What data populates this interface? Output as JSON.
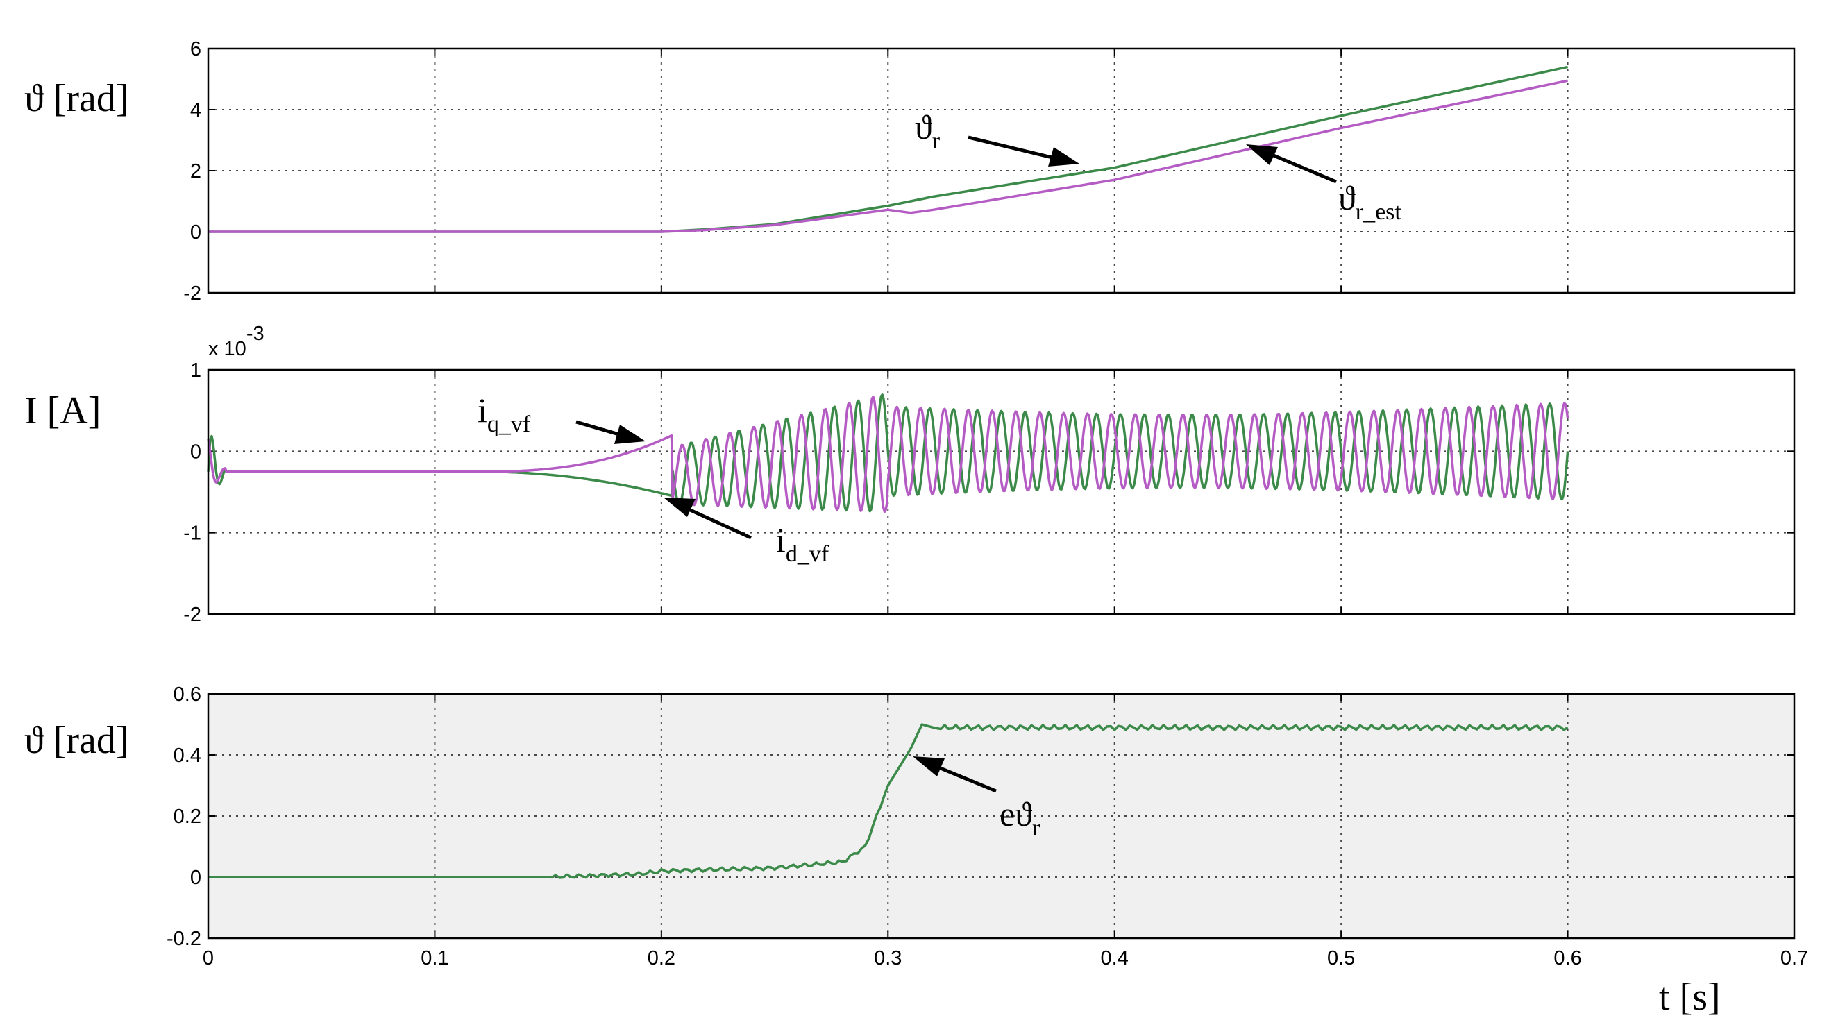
{
  "chart_data": [
    {
      "type": "line",
      "ylabel": "ϑ [rad]",
      "xlim": [
        0,
        0.7
      ],
      "ylim": [
        -2,
        6
      ],
      "yticks": [
        "6",
        "4",
        "2",
        "0",
        "-2"
      ],
      "grid": true,
      "background": "#ffffff",
      "series": [
        {
          "name": "ϑr",
          "color": "#3c8a4a",
          "x": [
            0,
            0.2,
            0.22,
            0.25,
            0.3,
            0.32,
            0.4,
            0.5,
            0.6
          ],
          "y": [
            0,
            0,
            0.08,
            0.25,
            0.85,
            1.15,
            2.1,
            3.8,
            5.4
          ]
        },
        {
          "name": "ϑr_est",
          "color": "#b45cc4",
          "x": [
            0,
            0.2,
            0.22,
            0.25,
            0.3,
            0.31,
            0.32,
            0.4,
            0.5,
            0.6
          ],
          "y": [
            0,
            0,
            0.06,
            0.22,
            0.72,
            0.62,
            0.72,
            1.7,
            3.4,
            4.95
          ]
        }
      ],
      "annotations": [
        {
          "base": "ϑ",
          "sub": "r"
        },
        {
          "base": "ϑ",
          "sub": "r_est"
        }
      ]
    },
    {
      "type": "line",
      "ylabel": "I [A]",
      "exponent": "x 10",
      "exponent_power": "-3",
      "xlim": [
        0,
        0.7
      ],
      "ylim": [
        -2,
        1
      ],
      "yticks": [
        "1",
        "0",
        "-1",
        "-2"
      ],
      "grid": true,
      "background": "#ffffff",
      "series": [
        {
          "name": "id_vf",
          "color": "#3c8a4a"
        },
        {
          "name": "iq_vf",
          "color": "#b45cc4"
        }
      ],
      "annotations": [
        {
          "base": "i",
          "sub": "q_vf"
        },
        {
          "base": "i",
          "sub": "d_vf"
        }
      ]
    },
    {
      "type": "line",
      "ylabel": "ϑ [rad]",
      "xlabel": "t [s]",
      "xlim": [
        0,
        0.7
      ],
      "ylim": [
        -0.2,
        0.6
      ],
      "yticks": [
        "0.6",
        "0.4",
        "0.2",
        "0",
        "-0.2"
      ],
      "xticks": [
        "0",
        "0.1",
        "0.2",
        "0.3",
        "0.4",
        "0.5",
        "0.6",
        "0.7"
      ],
      "grid": true,
      "background": "#f0f0f0",
      "series": [
        {
          "name": "eϑr",
          "color": "#3c8a4a",
          "x": [
            0,
            0.15,
            0.19,
            0.2,
            0.25,
            0.28,
            0.29,
            0.3,
            0.31,
            0.315,
            0.32,
            0.6
          ],
          "y": [
            0,
            0,
            0.01,
            0.02,
            0.03,
            0.05,
            0.1,
            0.3,
            0.42,
            0.5,
            0.49,
            0.49
          ]
        }
      ],
      "annotations": [
        {
          "base": "eϑ",
          "sub": "r"
        }
      ]
    }
  ]
}
